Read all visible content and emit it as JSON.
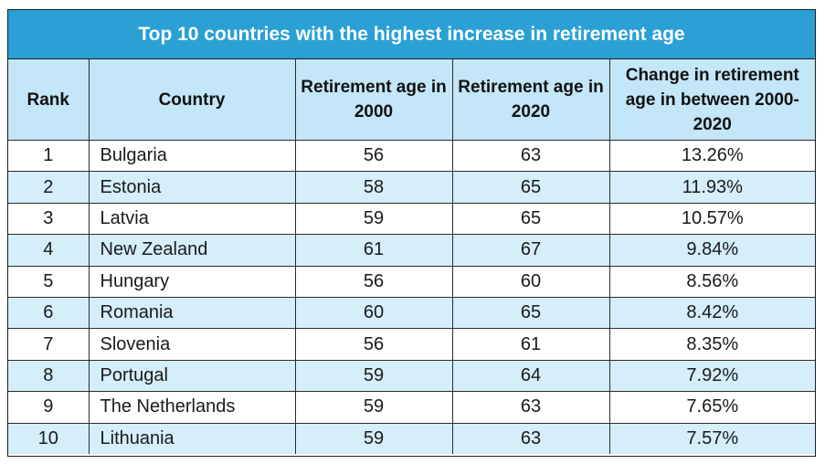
{
  "title": "Top 10 countries with the highest increase in retirement age",
  "headers": {
    "rank": "Rank",
    "country": "Country",
    "age_2000": "Retirement age in 2000",
    "age_2020": "Retirement age in 2020",
    "change": "Change in retirement age in between 2000-2020"
  },
  "rows": [
    {
      "rank": "1",
      "country": "Bulgaria",
      "age_2000": "56",
      "age_2020": "63",
      "change": "13.26%"
    },
    {
      "rank": "2",
      "country": "Estonia",
      "age_2000": "58",
      "age_2020": "65",
      "change": "11.93%"
    },
    {
      "rank": "3",
      "country": "Latvia",
      "age_2000": "59",
      "age_2020": "65",
      "change": "10.57%"
    },
    {
      "rank": "4",
      "country": "New Zealand",
      "age_2000": "61",
      "age_2020": "67",
      "change": "9.84%"
    },
    {
      "rank": "5",
      "country": "Hungary",
      "age_2000": "56",
      "age_2020": "60",
      "change": "8.56%"
    },
    {
      "rank": "6",
      "country": "Romania",
      "age_2000": "60",
      "age_2020": "65",
      "change": "8.42%"
    },
    {
      "rank": "7",
      "country": "Slovenia",
      "age_2000": "56",
      "age_2020": "61",
      "change": "8.35%"
    },
    {
      "rank": "8",
      "country": "Portugal",
      "age_2000": "59",
      "age_2020": "64",
      "change": "7.92%"
    },
    {
      "rank": "9",
      "country": "The Netherlands",
      "age_2000": "59",
      "age_2020": "63",
      "change": "7.65%"
    },
    {
      "rank": "10",
      "country": "Lithuania",
      "age_2000": "59",
      "age_2020": "63",
      "change": "7.57%"
    }
  ],
  "colors": {
    "title_background": "#2aa0d5",
    "header_background": "#c3e6f8",
    "stripe_background": "#d4eefa",
    "border": "#2b2b2b"
  }
}
